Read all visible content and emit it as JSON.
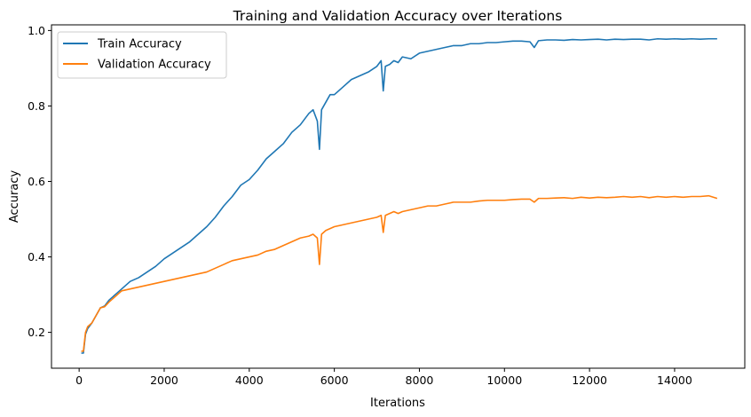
{
  "chart_data": {
    "type": "line",
    "title": "Training and Validation Accuracy over Iterations",
    "xlabel": "Iterations",
    "ylabel": "Accuracy",
    "xlim": [
      -650,
      15650
    ],
    "ylim": [
      0.105,
      1.015
    ],
    "xticks": [
      0,
      2000,
      4000,
      6000,
      8000,
      10000,
      12000,
      14000
    ],
    "yticks": [
      0.2,
      0.4,
      0.6,
      0.8,
      1.0
    ],
    "ytick_labels": [
      "0.2",
      "0.4",
      "0.6",
      "0.8",
      "1.0"
    ],
    "grid": false,
    "legend": "top-left",
    "series": [
      {
        "name": "Train Accuracy",
        "color": "#1f77b4",
        "x": [
          50,
          100,
          150,
          200,
          300,
          400,
          500,
          600,
          700,
          800,
          900,
          1000,
          1200,
          1400,
          1600,
          1800,
          2000,
          2200,
          2400,
          2600,
          2800,
          3000,
          3200,
          3400,
          3600,
          3800,
          4000,
          4200,
          4400,
          4600,
          4800,
          5000,
          5200,
          5400,
          5500,
          5600,
          5650,
          5700,
          5800,
          5900,
          6000,
          6200,
          6400,
          6600,
          6800,
          7000,
          7100,
          7150,
          7200,
          7300,
          7400,
          7500,
          7600,
          7800,
          8000,
          8200,
          8400,
          8600,
          8800,
          9000,
          9200,
          9400,
          9600,
          9800,
          10000,
          10200,
          10400,
          10600,
          10700,
          10800,
          11000,
          11200,
          11400,
          11600,
          11800,
          12000,
          12200,
          12400,
          12600,
          12800,
          13000,
          13200,
          13400,
          13600,
          13800,
          14000,
          14200,
          14400,
          14600,
          14800,
          15000
        ],
        "values": [
          0.145,
          0.145,
          0.195,
          0.21,
          0.225,
          0.245,
          0.265,
          0.27,
          0.285,
          0.295,
          0.305,
          0.315,
          0.335,
          0.345,
          0.36,
          0.375,
          0.395,
          0.41,
          0.425,
          0.44,
          0.46,
          0.48,
          0.505,
          0.535,
          0.56,
          0.59,
          0.605,
          0.63,
          0.66,
          0.68,
          0.7,
          0.73,
          0.75,
          0.78,
          0.79,
          0.76,
          0.685,
          0.79,
          0.81,
          0.83,
          0.83,
          0.85,
          0.87,
          0.88,
          0.89,
          0.905,
          0.92,
          0.84,
          0.905,
          0.91,
          0.92,
          0.915,
          0.93,
          0.925,
          0.94,
          0.945,
          0.95,
          0.955,
          0.96,
          0.96,
          0.965,
          0.965,
          0.968,
          0.968,
          0.97,
          0.972,
          0.972,
          0.97,
          0.955,
          0.973,
          0.975,
          0.975,
          0.974,
          0.976,
          0.975,
          0.976,
          0.977,
          0.975,
          0.977,
          0.976,
          0.977,
          0.977,
          0.975,
          0.978,
          0.977,
          0.978,
          0.977,
          0.978,
          0.977,
          0.978,
          0.978
        ]
      },
      {
        "name": "Validation Accuracy",
        "color": "#ff7f0e",
        "x": [
          50,
          100,
          150,
          200,
          300,
          400,
          500,
          600,
          700,
          800,
          900,
          1000,
          1200,
          1400,
          1600,
          1800,
          2000,
          2200,
          2400,
          2600,
          2800,
          3000,
          3200,
          3400,
          3600,
          3800,
          4000,
          4200,
          4400,
          4600,
          4800,
          5000,
          5200,
          5400,
          5500,
          5600,
          5650,
          5700,
          5800,
          5900,
          6000,
          6200,
          6400,
          6600,
          6800,
          7000,
          7100,
          7150,
          7200,
          7300,
          7400,
          7500,
          7600,
          7800,
          8000,
          8200,
          8400,
          8600,
          8800,
          9000,
          9200,
          9400,
          9600,
          9800,
          10000,
          10200,
          10400,
          10600,
          10700,
          10800,
          11000,
          11200,
          11400,
          11600,
          11800,
          12000,
          12200,
          12400,
          12600,
          12800,
          13000,
          13200,
          13400,
          13600,
          13800,
          14000,
          14200,
          14400,
          14600,
          14800,
          15000
        ],
        "values": [
          0.15,
          0.15,
          0.2,
          0.215,
          0.225,
          0.245,
          0.265,
          0.268,
          0.28,
          0.29,
          0.3,
          0.31,
          0.315,
          0.32,
          0.325,
          0.33,
          0.335,
          0.34,
          0.345,
          0.35,
          0.355,
          0.36,
          0.37,
          0.38,
          0.39,
          0.395,
          0.4,
          0.405,
          0.415,
          0.42,
          0.43,
          0.44,
          0.45,
          0.455,
          0.46,
          0.45,
          0.38,
          0.46,
          0.47,
          0.475,
          0.48,
          0.485,
          0.49,
          0.495,
          0.5,
          0.505,
          0.51,
          0.465,
          0.51,
          0.515,
          0.52,
          0.515,
          0.52,
          0.525,
          0.53,
          0.535,
          0.535,
          0.54,
          0.545,
          0.545,
          0.545,
          0.548,
          0.55,
          0.55,
          0.55,
          0.552,
          0.553,
          0.553,
          0.545,
          0.555,
          0.555,
          0.556,
          0.557,
          0.555,
          0.558,
          0.556,
          0.558,
          0.557,
          0.558,
          0.56,
          0.558,
          0.56,
          0.557,
          0.56,
          0.558,
          0.56,
          0.558,
          0.56,
          0.56,
          0.562,
          0.555
        ]
      }
    ]
  }
}
